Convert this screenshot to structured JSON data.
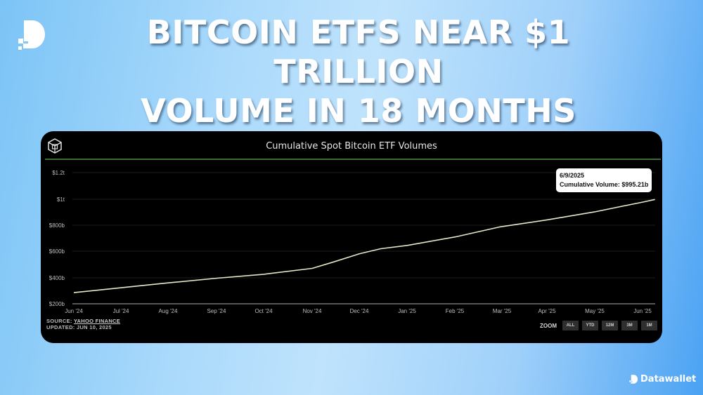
{
  "headline": {
    "line1": "BITCOIN ETFS NEAR $1 TRILLION",
    "line2": "VOLUME IN 18 MONTHS"
  },
  "brand": {
    "name": "Datawallet",
    "color": "#ffffff"
  },
  "chart_card": {
    "title": "Cumulative Spot Bitcoin ETF Volumes",
    "source_label": "SOURCE: ",
    "source_link": "YAHOO FINANCE",
    "updated": "UPDATED: JUN 10, 2025",
    "tooltip": {
      "date": "6/9/2025",
      "value_text": "Cumulative Volume: $995.21b"
    },
    "zoom": {
      "label": "ZOOM",
      "buttons": [
        "ALL",
        "YTD",
        "12M",
        "3M",
        "1M"
      ]
    },
    "colors": {
      "background": "#000000",
      "title_rule": "#3e6a33",
      "line": "#e8e6c8",
      "grid": "#1c1c1c",
      "axis": "#8a8a8a"
    }
  },
  "chart_data": {
    "type": "line",
    "title": "Cumulative Spot Bitcoin ETF Volumes",
    "xlabel": "",
    "ylabel": "",
    "x_tick_labels": [
      "Jun '24",
      "Jul '24",
      "Aug '24",
      "Sep '24",
      "Oct '24",
      "Nov '24",
      "Dec '24",
      "Jan '25",
      "Feb '25",
      "Mar '25",
      "Apr '25",
      "May '25",
      "Jun '25"
    ],
    "y_tick_labels": [
      "$200b",
      "$400b",
      "$600b",
      "$800b",
      "$1t",
      "$1.2t"
    ],
    "y_tick_values": [
      200,
      400,
      600,
      800,
      1000,
      1200
    ],
    "ylim": [
      200,
      1200
    ],
    "grid": true,
    "legend": null,
    "series": [
      {
        "name": "Cumulative Volume ($b)",
        "x": [
          "2024-06-01",
          "2024-07-01",
          "2024-08-01",
          "2024-09-01",
          "2024-10-01",
          "2024-11-01",
          "2024-11-15",
          "2024-12-01",
          "2024-12-15",
          "2025-01-01",
          "2025-02-01",
          "2025-03-01",
          "2025-04-01",
          "2025-05-01",
          "2025-06-01",
          "2025-06-09"
        ],
        "values": [
          285,
          322,
          360,
          395,
          425,
          470,
          520,
          580,
          620,
          645,
          710,
          785,
          840,
          900,
          975,
          995.21
        ]
      }
    ],
    "annotations": [
      {
        "x": "2025-06-09",
        "text": "6/9/2025 Cumulative Volume: $995.21b"
      }
    ],
    "source": "Yahoo Finance",
    "updated": "Jun 10, 2025"
  }
}
